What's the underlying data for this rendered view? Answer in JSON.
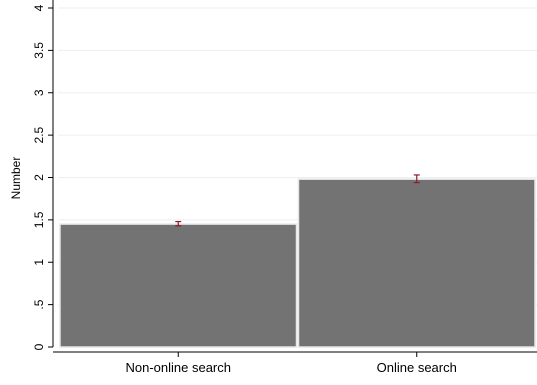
{
  "chart_data": {
    "type": "bar",
    "title": "",
    "xlabel": "",
    "ylabel": "Number",
    "ylim": [
      0,
      4
    ],
    "yticks": [
      0,
      0.5,
      1,
      1.5,
      2,
      2.5,
      3,
      3.5,
      4
    ],
    "ytick_labels": [
      "0",
      ".5",
      "1",
      "1.5",
      "2",
      "2.5",
      "3",
      "3.5",
      "4"
    ],
    "categories": [
      "Non-online search",
      "Online search"
    ],
    "values": [
      1.45,
      1.98
    ],
    "error_low": [
      1.43,
      1.94
    ],
    "error_high": [
      1.48,
      2.03
    ],
    "grid": true,
    "legend": "none",
    "colors": {
      "bar": "#737373",
      "bar_edge": "#e6e6e6",
      "error_bar": "#8b1c2c",
      "grid": "#eaf0f4",
      "axis": "#000000"
    }
  }
}
